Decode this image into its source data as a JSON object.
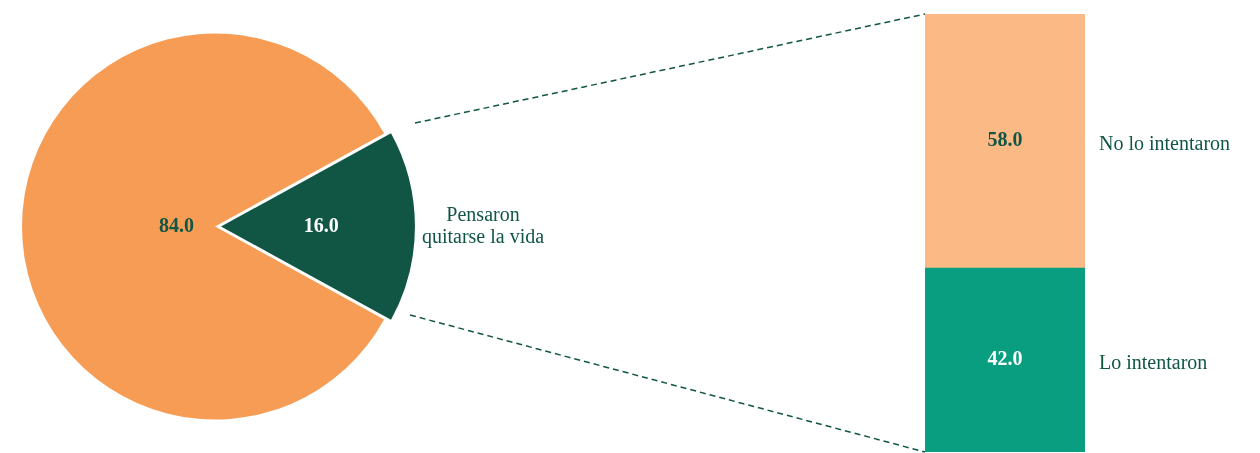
{
  "chart_data": [
    {
      "type": "pie",
      "categories": [
        null,
        "Pensaron quitarse la vida"
      ],
      "values": [
        84.0,
        16.0
      ],
      "colors": [
        "#f79c55",
        "#115645"
      ],
      "value_labels": [
        "84.0",
        "16.0"
      ],
      "legend": false
    },
    {
      "type": "bar",
      "stacked": true,
      "categories": [
        null
      ],
      "ylim": [
        0,
        100
      ],
      "legend": false,
      "series": [
        {
          "name": "Lo intentaron",
          "color": "#089e7f",
          "values": [
            42.0
          ],
          "value_labels": [
            "42.0"
          ]
        },
        {
          "name": "No lo intentaron",
          "color": "#fbb985",
          "values": [
            58.0
          ],
          "value_labels": [
            "58.0"
          ]
        }
      ]
    }
  ]
}
